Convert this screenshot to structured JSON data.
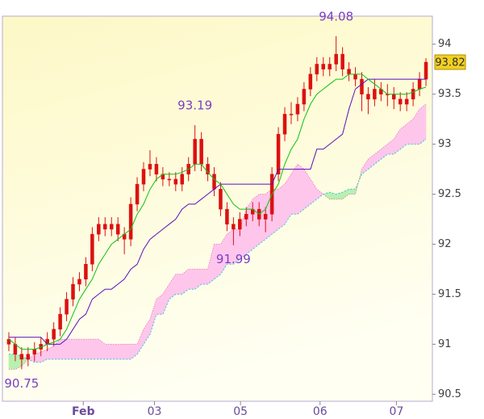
{
  "chart_data": {
    "type": "candlestick",
    "color": "#dd1010",
    "open": [
      91.05,
      91.0,
      90.9,
      90.85,
      90.9,
      90.95,
      91.0,
      91.05,
      91.15,
      91.3,
      91.45,
      91.6,
      91.65,
      91.8,
      92.1,
      92.2,
      92.15,
      92.2,
      92.1,
      92.05,
      92.4,
      92.6,
      92.75,
      92.8,
      92.7,
      92.65,
      92.65,
      92.6,
      92.7,
      92.8,
      93.05,
      92.8,
      92.7,
      92.55,
      92.35,
      92.2,
      92.15,
      92.25,
      92.3,
      92.35,
      92.25,
      92.3,
      92.7,
      93.1,
      93.3,
      93.3,
      93.4,
      93.55,
      93.7,
      93.8,
      93.75,
      93.8,
      93.9,
      93.75,
      93.7,
      93.65,
      93.5,
      93.45,
      93.55,
      93.5,
      93.5,
      93.45,
      93.4,
      93.45,
      93.55,
      93.65
    ],
    "high": [
      91.12,
      91.07,
      90.97,
      90.97,
      91.02,
      91.07,
      91.12,
      91.22,
      91.37,
      91.52,
      91.67,
      91.72,
      91.87,
      92.17,
      92.27,
      92.27,
      92.27,
      92.27,
      92.17,
      92.47,
      92.67,
      92.82,
      92.94,
      92.87,
      92.77,
      92.72,
      92.72,
      92.77,
      92.87,
      93.19,
      93.12,
      92.87,
      92.77,
      92.62,
      92.42,
      92.27,
      92.32,
      92.37,
      92.42,
      92.42,
      92.37,
      92.77,
      93.17,
      93.37,
      93.42,
      93.47,
      93.62,
      93.77,
      93.87,
      93.87,
      93.87,
      94.08,
      93.97,
      93.82,
      93.77,
      93.72,
      93.57,
      93.65,
      93.62,
      93.6,
      93.57,
      93.52,
      93.52,
      93.62,
      93.72,
      93.86
    ],
    "low": [
      90.93,
      90.83,
      90.75,
      90.78,
      90.83,
      90.88,
      90.93,
      90.98,
      91.08,
      91.23,
      91.38,
      91.53,
      91.58,
      91.73,
      92.03,
      92.08,
      92.08,
      92.03,
      91.9,
      91.98,
      92.33,
      92.53,
      92.68,
      92.63,
      92.58,
      92.58,
      92.53,
      92.53,
      92.63,
      92.73,
      92.73,
      92.63,
      92.48,
      92.28,
      92.13,
      91.99,
      92.08,
      92.18,
      92.23,
      92.18,
      92.12,
      92.23,
      92.63,
      93.03,
      93.2,
      93.23,
      93.33,
      93.48,
      93.63,
      93.68,
      93.68,
      93.73,
      93.68,
      93.63,
      93.58,
      93.33,
      93.3,
      93.38,
      93.43,
      93.38,
      93.35,
      93.33,
      93.33,
      93.38,
      93.48,
      93.58
    ],
    "close": [
      91.0,
      90.9,
      90.85,
      90.9,
      90.95,
      91.0,
      91.05,
      91.15,
      91.3,
      91.45,
      91.6,
      91.65,
      91.8,
      92.1,
      92.2,
      92.15,
      92.2,
      92.1,
      92.05,
      92.4,
      92.6,
      92.75,
      92.8,
      92.7,
      92.65,
      92.65,
      92.6,
      92.7,
      92.8,
      93.05,
      92.8,
      92.7,
      92.55,
      92.35,
      92.2,
      92.15,
      92.25,
      92.3,
      92.35,
      92.25,
      92.3,
      92.7,
      93.1,
      93.3,
      93.3,
      93.4,
      93.55,
      93.7,
      93.8,
      93.75,
      93.8,
      93.9,
      93.75,
      93.7,
      93.65,
      93.5,
      93.45,
      93.55,
      93.5,
      93.5,
      93.45,
      93.4,
      93.45,
      93.55,
      93.65,
      93.82
    ],
    "tenkan": {
      "color": "#10c010",
      "values": [
        91.05,
        91.0,
        90.95,
        90.95,
        90.95,
        90.97,
        91.0,
        91.02,
        91.05,
        91.15,
        91.3,
        91.45,
        91.55,
        91.65,
        91.8,
        91.9,
        92.0,
        92.05,
        92.1,
        92.15,
        92.3,
        92.4,
        92.55,
        92.65,
        92.7,
        92.7,
        92.7,
        92.72,
        92.75,
        92.8,
        92.8,
        92.72,
        92.65,
        92.6,
        92.5,
        92.4,
        92.35,
        92.35,
        92.35,
        92.3,
        92.35,
        92.5,
        92.6,
        92.8,
        92.95,
        93.05,
        93.25,
        93.4,
        93.5,
        93.55,
        93.6,
        93.65,
        93.65,
        93.7,
        93.7,
        93.7,
        93.65,
        93.6,
        93.55,
        93.5,
        93.5,
        93.5,
        93.5,
        93.52,
        93.55,
        93.57
      ]
    },
    "kijun": {
      "color": "#5a10c0",
      "values": [
        91.07,
        91.07,
        91.07,
        91.07,
        91.07,
        91.07,
        91.0,
        91.0,
        91.0,
        91.05,
        91.15,
        91.25,
        91.3,
        91.45,
        91.5,
        91.55,
        91.55,
        91.6,
        91.65,
        91.75,
        91.8,
        91.95,
        92.05,
        92.1,
        92.15,
        92.2,
        92.25,
        92.35,
        92.4,
        92.4,
        92.45,
        92.5,
        92.55,
        92.6,
        92.6,
        92.6,
        92.6,
        92.6,
        92.6,
        92.6,
        92.6,
        92.6,
        92.75,
        92.75,
        92.75,
        92.75,
        92.75,
        92.75,
        92.95,
        92.95,
        93.0,
        93.05,
        93.1,
        93.35,
        93.55,
        93.6,
        93.65,
        93.65,
        93.65,
        93.65,
        93.65,
        93.65,
        93.65,
        93.65,
        93.65,
        93.65
      ]
    },
    "span_a": {
      "color": "#30c8e0",
      "values": [
        90.9,
        90.9,
        90.88,
        90.85,
        90.82,
        90.82,
        90.85,
        90.85,
        90.85,
        90.85,
        90.85,
        90.85,
        90.85,
        90.85,
        90.85,
        90.85,
        90.85,
        90.85,
        90.85,
        90.85,
        90.9,
        91.0,
        91.1,
        91.3,
        91.3,
        91.45,
        91.5,
        91.5,
        91.55,
        91.55,
        91.6,
        91.6,
        91.65,
        91.7,
        91.8,
        91.8,
        91.85,
        91.9,
        91.95,
        92.0,
        92.05,
        92.1,
        92.15,
        92.2,
        92.3,
        92.3,
        92.35,
        92.4,
        92.45,
        92.5,
        92.52,
        92.5,
        92.52,
        92.55,
        92.55,
        92.7,
        92.75,
        92.8,
        92.85,
        92.9,
        92.9,
        92.95,
        93.0,
        93.0,
        93.0,
        93.05
      ]
    },
    "span_b": {
      "color": "#e070b0",
      "values": [
        90.75,
        90.75,
        90.78,
        90.85,
        90.9,
        90.92,
        90.95,
        90.98,
        91.05,
        91.05,
        91.05,
        91.05,
        91.05,
        91.05,
        91.05,
        91.0,
        91.0,
        91.0,
        91.0,
        91.0,
        91.0,
        91.15,
        91.25,
        91.45,
        91.5,
        91.6,
        91.7,
        91.7,
        91.75,
        91.75,
        91.75,
        91.75,
        92.0,
        92.0,
        92.1,
        92.15,
        92.15,
        92.35,
        92.45,
        92.5,
        92.5,
        92.55,
        92.55,
        92.6,
        92.7,
        92.8,
        92.75,
        92.65,
        92.55,
        92.5,
        92.45,
        92.45,
        92.45,
        92.5,
        92.5,
        92.75,
        92.85,
        92.9,
        92.95,
        93.0,
        93.05,
        93.15,
        93.2,
        93.25,
        93.35,
        93.4
      ]
    },
    "cloud_colors": [
      "#ffc6ec",
      "#b8f0b0"
    ],
    "xlim": [
      -1,
      66
    ],
    "xticks": [
      {
        "value": 11.6,
        "label": "Feb"
      },
      {
        "value": 22.7,
        "label": "03"
      },
      {
        "value": 36.1,
        "label": "05"
      },
      {
        "value": 48.5,
        "label": "06"
      },
      {
        "value": 60.4,
        "label": "07"
      }
    ],
    "ylim": [
      90.43,
      94.28
    ],
    "yticks": [
      90.5,
      91,
      91.5,
      92,
      92.5,
      93,
      93.5,
      94
    ]
  }
}
